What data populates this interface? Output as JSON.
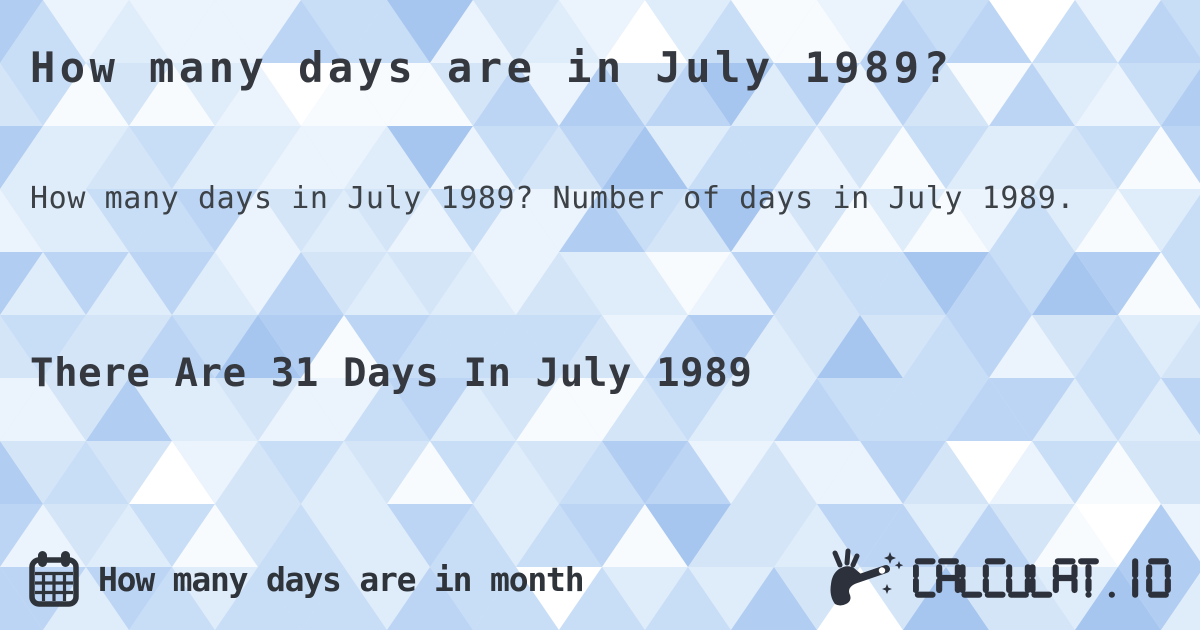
{
  "page": {
    "title": "How many days are in July 1989?",
    "description": "How many days in July 1989? Number of days in July 1989.",
    "answer": "There Are 31 Days In July 1989"
  },
  "footer": {
    "category_label": "How many days are in month",
    "category_icon": "calendar-icon",
    "brand": "CALCULAT.IO",
    "brand_icon": "magic-wand-hand-icon"
  },
  "colors": {
    "text_heading": "#35393f",
    "text_body": "#3d4247",
    "text_footer": "#2f343b",
    "brand": "#2c313c",
    "pattern_palette": [
      "#a6c6ef",
      "#b1cdf1",
      "#bdd5f4",
      "#c8ddf6",
      "#d4e5f8",
      "#dfecfa",
      "#ebf3fc",
      "#f7fbfe",
      "#ffffff"
    ]
  }
}
